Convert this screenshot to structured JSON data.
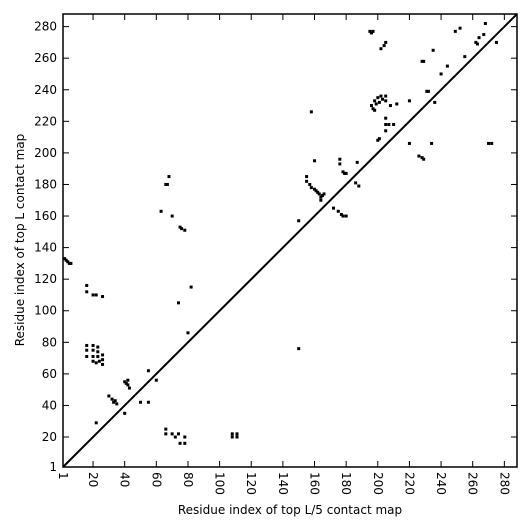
{
  "chart_data": {
    "type": "scatter",
    "xlabel": "Residue index of top L/5 contact map",
    "ylabel": "Residue index of top L contact map",
    "color": "#000000",
    "xlim": [
      1,
      288
    ],
    "ylim": [
      1,
      288
    ],
    "xticks": [
      1,
      20,
      40,
      60,
      80,
      100,
      120,
      140,
      160,
      180,
      200,
      220,
      240,
      260,
      280
    ],
    "yticks": [
      1,
      20,
      40,
      60,
      80,
      100,
      120,
      140,
      160,
      180,
      200,
      220,
      240,
      260,
      280
    ],
    "x": [
      2,
      3,
      4,
      5,
      6,
      16,
      16,
      20,
      22,
      26,
      16,
      16,
      16,
      20,
      20,
      20,
      23,
      23,
      23,
      24,
      26,
      26,
      26,
      20,
      22,
      30,
      32,
      33,
      34,
      35,
      40,
      41,
      42,
      43,
      42,
      50,
      55,
      55,
      60,
      63,
      66,
      67,
      68,
      70,
      75,
      76,
      78,
      74,
      82,
      80,
      66,
      66,
      70,
      72,
      74,
      75,
      78,
      78,
      108,
      108,
      111,
      111,
      22,
      40,
      150,
      155,
      155,
      157,
      158,
      160,
      161,
      162,
      163,
      164,
      165,
      166,
      164,
      150,
      176,
      176,
      178,
      179,
      180,
      175,
      177,
      178,
      180,
      186,
      188,
      187,
      195,
      196,
      197,
      198,
      199,
      196,
      197,
      198,
      200,
      202,
      203,
      205,
      205,
      201,
      200,
      201,
      202,
      204,
      205,
      205,
      205,
      205,
      207,
      210,
      208,
      212,
      220,
      220,
      228,
      229,
      226,
      228,
      229,
      231,
      232,
      234,
      235,
      236,
      240,
      244,
      249,
      252,
      255,
      262,
      263,
      264,
      267,
      268,
      270,
      272,
      275,
      160,
      158,
      172
    ],
    "values": [
      133,
      132,
      131,
      130,
      130,
      116,
      112,
      110,
      110,
      109,
      78,
      75,
      71,
      78,
      75,
      71,
      77,
      74,
      71,
      68,
      72,
      69,
      66,
      68,
      67,
      46,
      44,
      42,
      43,
      41,
      55,
      54,
      53,
      51,
      56,
      42,
      42,
      62,
      56,
      163,
      180,
      180,
      185,
      160,
      153,
      152,
      151,
      105,
      115,
      86,
      25,
      22,
      22,
      20,
      22,
      16,
      16,
      20,
      22,
      20,
      22,
      20,
      29,
      35,
      76,
      185,
      182,
      180,
      178,
      177,
      176,
      175,
      174,
      172,
      173,
      174,
      170,
      157,
      196,
      193,
      188,
      187,
      187,
      163,
      161,
      160,
      160,
      181,
      179,
      194,
      277,
      276,
      277,
      233,
      231,
      230,
      228,
      227,
      235,
      236,
      234,
      236,
      233,
      232,
      208,
      209,
      266,
      268,
      270,
      222,
      218,
      214,
      218,
      218,
      230,
      231,
      233,
      206,
      258,
      258,
      198,
      197,
      196,
      239,
      239,
      206,
      265,
      232,
      250,
      255,
      277,
      279,
      261,
      270,
      269,
      273,
      275,
      282,
      206,
      206,
      270,
      195,
      226,
      165
    ]
  }
}
